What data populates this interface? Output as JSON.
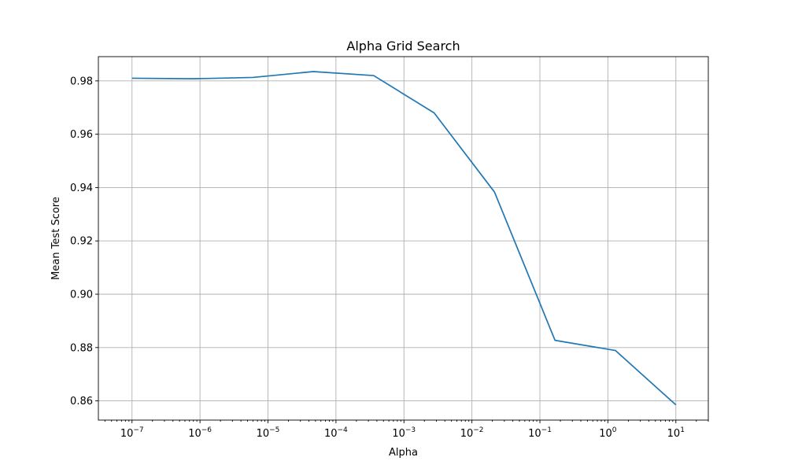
{
  "chart_data": {
    "type": "line",
    "title": "Alpha Grid Search",
    "xlabel": "Alpha",
    "ylabel": "Mean Test Score",
    "xscale": "log",
    "grid": true,
    "xlim": [
      3.2e-08,
      30
    ],
    "ylim": [
      0.8528,
      0.9891
    ],
    "x_ticks": [
      {
        "base": "10",
        "exp": "−7",
        "value": 1e-07
      },
      {
        "base": "10",
        "exp": "−6",
        "value": 1e-06
      },
      {
        "base": "10",
        "exp": "−5",
        "value": 1e-05
      },
      {
        "base": "10",
        "exp": "−4",
        "value": 0.0001
      },
      {
        "base": "10",
        "exp": "−3",
        "value": 0.001
      },
      {
        "base": "10",
        "exp": "−2",
        "value": 0.01
      },
      {
        "base": "10",
        "exp": "−1",
        "value": 0.1
      },
      {
        "base": "10",
        "exp": "0",
        "value": 1
      },
      {
        "base": "10",
        "exp": "1",
        "value": 10
      }
    ],
    "y_ticks": [
      "0.86",
      "0.88",
      "0.90",
      "0.92",
      "0.94",
      "0.96",
      "0.98"
    ],
    "series": [
      {
        "color": "#1f77b4",
        "x": [
          1e-07,
          7.74e-07,
          5.99e-06,
          4.64e-05,
          0.000359,
          0.00278,
          0.0215,
          0.167,
          1.29,
          10
        ],
        "y": [
          0.981,
          0.9808,
          0.9813,
          0.9835,
          0.982,
          0.968,
          0.9383,
          0.8827,
          0.8789,
          0.8585
        ]
      }
    ]
  }
}
